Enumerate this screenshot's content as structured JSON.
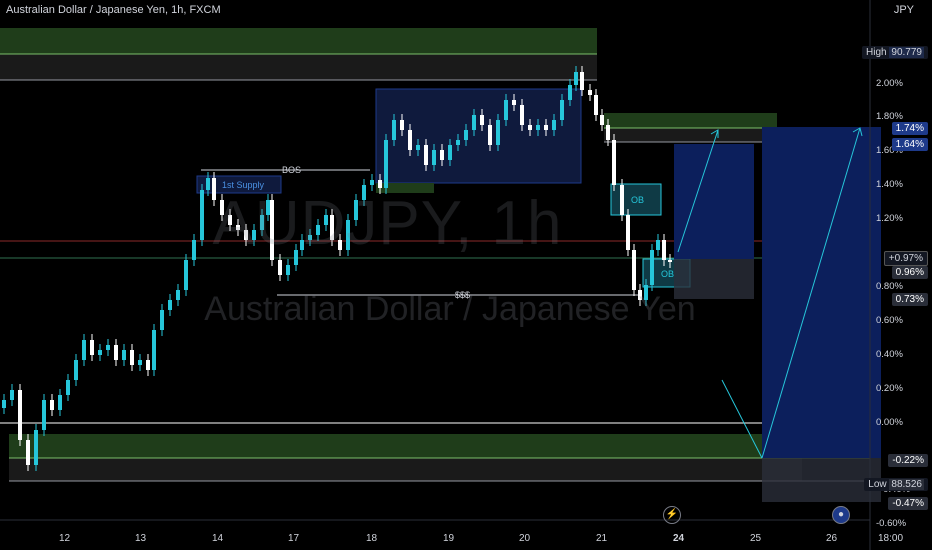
{
  "header": {
    "title": "Australian Dollar / Japanese Yen, 1h, FXCM",
    "currency": "JPY"
  },
  "watermark": {
    "symbol": "AUDJPY, 1h",
    "name": "Australian Dollar / Japanese Yen"
  },
  "chart_data": {
    "type": "candlestick",
    "x_ticks": [
      "12",
      "13",
      "14",
      "17",
      "18",
      "19",
      "20",
      "21",
      "24",
      "25",
      "26",
      "18:00"
    ],
    "y_ticks": [
      "2.00%",
      "1.80%",
      "1.60%",
      "1.40%",
      "1.20%",
      "0.80%",
      "0.60%",
      "0.40%",
      "0.20%",
      "0.00%",
      "-0.60%"
    ],
    "price_badges": {
      "high_label": "High",
      "high_value": "90.779",
      "p174": "1.74%",
      "p164": "1.64%",
      "current": "+0.97%",
      "p096": "0.96%",
      "p073": "0.73%",
      "neg022": "-0.22%",
      "low_label": "Low",
      "low_value": "88.526",
      "neg047": "-0.47%",
      "neg040": "-0.40%"
    },
    "annotations": {
      "bos": "BOS",
      "supply": "1st Supply",
      "liquidity": "$$$",
      "ob_upper": "OB",
      "ob_lower": "OB"
    },
    "colors": {
      "bull": "#26c6da",
      "bear": "#ffffff",
      "demand": "#1b3a1b",
      "supply_box": "#0f1a3d",
      "position": "#0c1f5c"
    }
  },
  "icons": {
    "lightning": "lightning-icon",
    "news": "news-icon"
  }
}
